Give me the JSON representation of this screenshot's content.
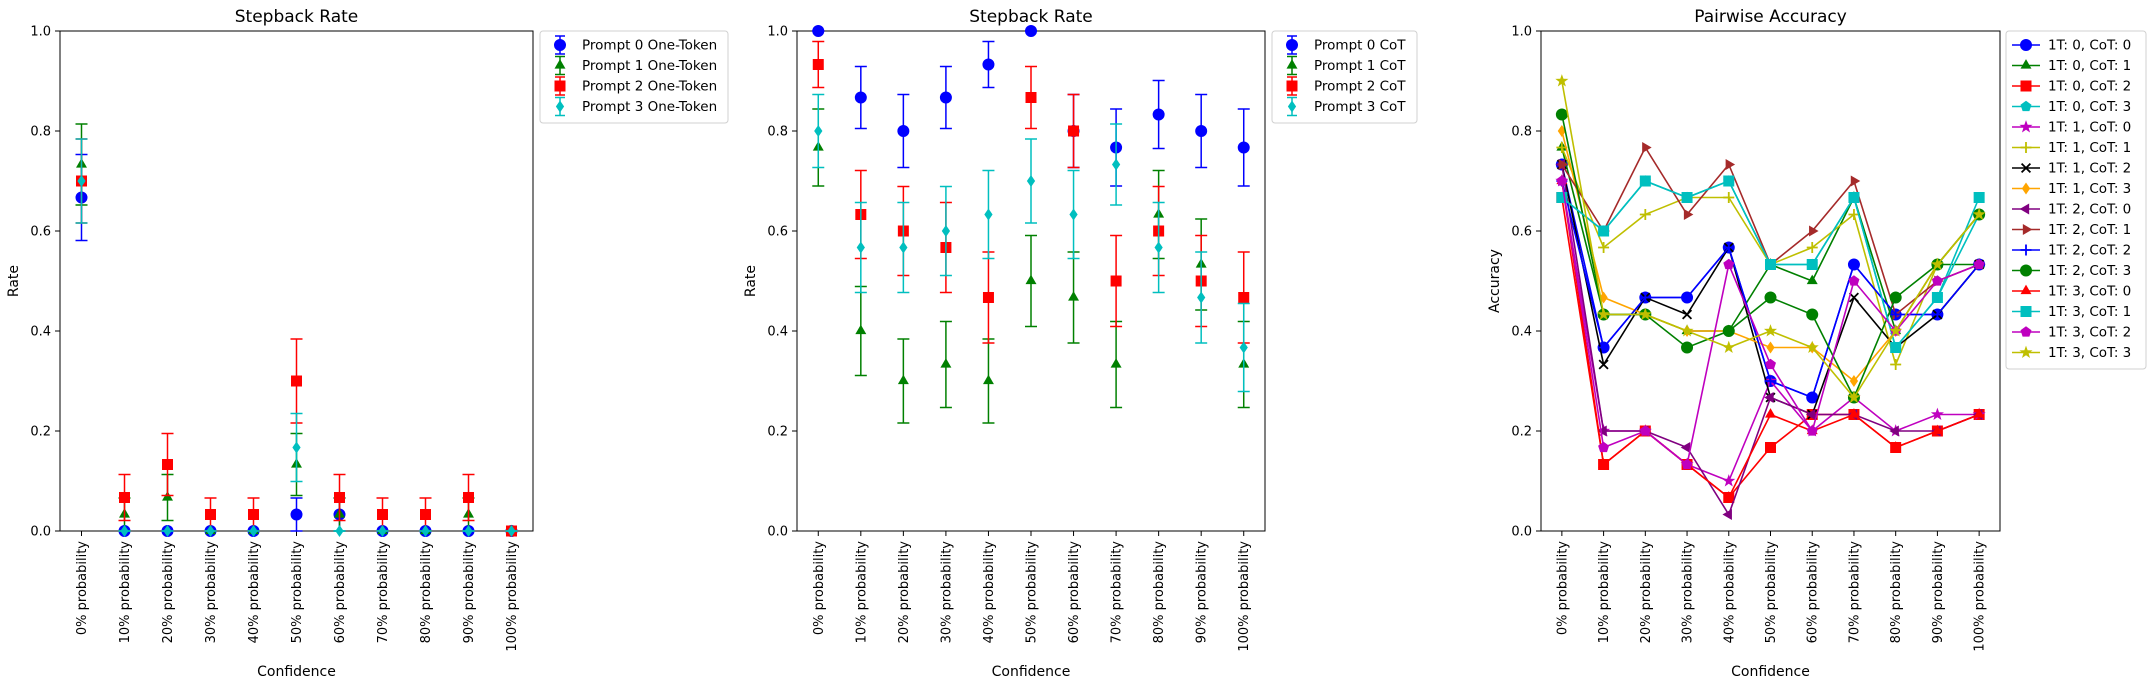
{
  "chart_data": [
    {
      "type": "scatter",
      "title": "Stepback Rate",
      "xlabel": "Confidence",
      "ylabel": "Rate",
      "ylim": [
        0,
        1
      ],
      "yticks": [
        "0.0",
        "0.2",
        "0.4",
        "0.6",
        "0.8",
        "1.0"
      ],
      "categories": [
        "0% probability",
        "10% probability",
        "20% probability",
        "30% probability",
        "40% probability",
        "50% probability",
        "60% probability",
        "70% probability",
        "80% probability",
        "90% probability",
        "100% probability"
      ],
      "legend_position": "outside-right-top",
      "grid": false,
      "error_bars": true,
      "series": [
        {
          "name": "Prompt 0 One-Token",
          "color": "#0000ff",
          "marker": "circle",
          "values": [
            0.667,
            0,
            0,
            0,
            0,
            0.033,
            0.033,
            0,
            0,
            0,
            0
          ],
          "errors": [
            0.086,
            0,
            0,
            0,
            0,
            0.033,
            0.033,
            0,
            0,
            0,
            0
          ]
        },
        {
          "name": "Prompt 1 One-Token",
          "color": "#008000",
          "marker": "triangle",
          "values": [
            0.733,
            0.033,
            0.067,
            0,
            0,
            0.133,
            0.033,
            0,
            0,
            0.033,
            0
          ],
          "errors": [
            0.081,
            0.033,
            0.046,
            0,
            0,
            0.062,
            0.033,
            0,
            0,
            0.033,
            0
          ]
        },
        {
          "name": "Prompt 2 One-Token",
          "color": "#ff0000",
          "marker": "square",
          "values": [
            0.7,
            0.067,
            0.133,
            0.033,
            0.033,
            0.3,
            0.067,
            0.033,
            0.033,
            0.067,
            0
          ],
          "errors": [
            0.084,
            0.046,
            0.062,
            0.033,
            0.033,
            0.084,
            0.046,
            0.033,
            0.033,
            0.046,
            0
          ]
        },
        {
          "name": "Prompt 3 One-Token",
          "color": "#00bfbf",
          "marker": "diamond",
          "values": [
            0.7,
            0,
            0,
            0,
            0,
            0.167,
            0,
            0,
            0,
            0,
            0
          ],
          "errors": [
            0.084,
            0,
            0,
            0,
            0,
            0.068,
            0,
            0,
            0,
            0,
            0
          ]
        }
      ]
    },
    {
      "type": "scatter",
      "title": "Stepback Rate",
      "xlabel": "Confidence",
      "ylabel": "Rate",
      "ylim": [
        0,
        1
      ],
      "yticks": [
        "0.0",
        "0.2",
        "0.4",
        "0.6",
        "0.8",
        "1.0"
      ],
      "categories": [
        "0% probability",
        "10% probability",
        "20% probability",
        "30% probability",
        "40% probability",
        "50% probability",
        "60% probability",
        "70% probability",
        "80% probability",
        "90% probability",
        "100% probability"
      ],
      "legend_position": "outside-right-top",
      "grid": false,
      "error_bars": true,
      "series": [
        {
          "name": "Prompt 0 CoT",
          "color": "#0000ff",
          "marker": "circle",
          "values": [
            1.0,
            0.867,
            0.8,
            0.867,
            0.933,
            1.0,
            0.8,
            0.767,
            0.833,
            0.8,
            0.767
          ],
          "errors": [
            0,
            0.062,
            0.073,
            0.062,
            0.046,
            0,
            0.073,
            0.077,
            0.068,
            0.073,
            0.077
          ]
        },
        {
          "name": "Prompt 1 CoT",
          "color": "#008000",
          "marker": "triangle",
          "values": [
            0.767,
            0.4,
            0.3,
            0.333,
            0.3,
            0.5,
            0.467,
            0.333,
            0.633,
            0.533,
            0.333
          ],
          "errors": [
            0.077,
            0.089,
            0.084,
            0.086,
            0.084,
            0.091,
            0.091,
            0.086,
            0.088,
            0.091,
            0.086
          ]
        },
        {
          "name": "Prompt 2 CoT",
          "color": "#ff0000",
          "marker": "square",
          "values": [
            0.933,
            0.633,
            0.6,
            0.567,
            0.467,
            0.867,
            0.8,
            0.5,
            0.6,
            0.5,
            0.467
          ],
          "errors": [
            0.046,
            0.088,
            0.089,
            0.09,
            0.091,
            0.062,
            0.073,
            0.091,
            0.089,
            0.091,
            0.091
          ]
        },
        {
          "name": "Prompt 3 CoT",
          "color": "#00bfbf",
          "marker": "diamond",
          "values": [
            0.8,
            0.567,
            0.567,
            0.6,
            0.633,
            0.7,
            0.633,
            0.733,
            0.567,
            0.467,
            0.367
          ],
          "errors": [
            0.073,
            0.09,
            0.09,
            0.089,
            0.088,
            0.084,
            0.088,
            0.081,
            0.09,
            0.091,
            0.088
          ]
        }
      ]
    },
    {
      "type": "line",
      "title": "Pairwise Accuracy",
      "xlabel": "Confidence",
      "ylabel": "Accuracy",
      "ylim": [
        0,
        1
      ],
      "yticks": [
        "0.0",
        "0.2",
        "0.4",
        "0.6",
        "0.8",
        "1.0"
      ],
      "categories": [
        "0% probability",
        "10% probability",
        "20% probability",
        "30% probability",
        "40% probability",
        "50% probability",
        "60% probability",
        "70% probability",
        "80% probability",
        "90% probability",
        "100% probability"
      ],
      "legend_position": "outside-right-top",
      "grid": false,
      "series": [
        {
          "name": "1T: 0, CoT: 0",
          "color": "#0000ff",
          "marker": "circle",
          "values": [
            0.733,
            0.367,
            0.467,
            0.467,
            0.567,
            0.3,
            0.267,
            0.533,
            0.433,
            0.433,
            0.533
          ]
        },
        {
          "name": "1T: 0, CoT: 1",
          "color": "#008000",
          "marker": "triangle",
          "values": [
            0.767,
            0.433,
            0.433,
            0.4,
            0.4,
            0.533,
            0.5,
            0.667,
            0.4,
            0.533,
            0.533
          ]
        },
        {
          "name": "1T: 0, CoT: 2",
          "color": "#ff0000",
          "marker": "square",
          "values": [
            0.667,
            0.133,
            0.2,
            0.133,
            0.067,
            0.167,
            0.233,
            0.233,
            0.167,
            0.2,
            0.233
          ]
        },
        {
          "name": "1T: 0, CoT: 3",
          "color": "#00bfbf",
          "marker": "pentagon",
          "values": [
            0.667,
            0.6,
            0.7,
            0.667,
            0.7,
            0.533,
            0.533,
            0.667,
            0.367,
            0.467,
            0.633
          ]
        },
        {
          "name": "1T: 1, CoT: 0",
          "color": "#bf00bf",
          "marker": "star",
          "values": [
            0.7,
            0.2,
            0.2,
            0.133,
            0.1,
            0.3,
            0.2,
            0.267,
            0.2,
            0.233,
            0.233
          ]
        },
        {
          "name": "1T: 1, CoT: 1",
          "color": "#bfbf00",
          "marker": "plus",
          "values": [
            0.767,
            0.567,
            0.633,
            0.667,
            0.667,
            0.533,
            0.567,
            0.633,
            0.333,
            0.533,
            0.633
          ]
        },
        {
          "name": "1T: 1, CoT: 2",
          "color": "#000000",
          "marker": "x",
          "values": [
            0.733,
            0.333,
            0.467,
            0.433,
            0.567,
            0.267,
            0.233,
            0.467,
            0.367,
            0.433,
            0.533
          ]
        },
        {
          "name": "1T: 1, CoT: 3",
          "color": "#ffa500",
          "marker": "diamond",
          "values": [
            0.8,
            0.467,
            0.433,
            0.4,
            0.4,
            0.367,
            0.367,
            0.3,
            0.4,
            0.533,
            0.633
          ]
        },
        {
          "name": "1T: 2, CoT: 0",
          "color": "#800080",
          "marker": "triangle-left",
          "values": [
            0.733,
            0.2,
            0.2,
            0.167,
            0.033,
            0.267,
            0.233,
            0.233,
            0.2,
            0.2,
            0.233
          ]
        },
        {
          "name": "1T: 2, CoT: 1",
          "color": "#a52a2a",
          "marker": "triangle-right",
          "values": [
            0.733,
            0.6,
            0.767,
            0.633,
            0.733,
            0.533,
            0.6,
            0.7,
            0.433,
            0.5,
            0.533
          ]
        },
        {
          "name": "1T: 2, CoT: 2",
          "color": "#0000ff",
          "marker": "plus",
          "values": [
            0.7,
            0.367,
            0.467,
            0.467,
            0.567,
            0.3,
            0.267,
            0.533,
            0.433,
            0.433,
            0.533
          ]
        },
        {
          "name": "1T: 2, CoT: 3",
          "color": "#008000",
          "marker": "circle",
          "values": [
            0.833,
            0.433,
            0.433,
            0.367,
            0.4,
            0.467,
            0.433,
            0.267,
            0.467,
            0.533,
            0.633
          ]
        },
        {
          "name": "1T: 3, CoT: 0",
          "color": "#ff0000",
          "marker": "triangle",
          "values": [
            0.7,
            0.133,
            0.2,
            0.133,
            0.067,
            0.233,
            0.2,
            0.233,
            0.167,
            0.2,
            0.233
          ]
        },
        {
          "name": "1T: 3, CoT: 1",
          "color": "#00bfbf",
          "marker": "square",
          "values": [
            0.667,
            0.6,
            0.7,
            0.667,
            0.7,
            0.533,
            0.533,
            0.667,
            0.367,
            0.467,
            0.667
          ]
        },
        {
          "name": "1T: 3, CoT: 2",
          "color": "#bf00bf",
          "marker": "pentagon",
          "values": [
            0.7,
            0.167,
            0.2,
            0.133,
            0.533,
            0.333,
            0.2,
            0.5,
            0.4,
            0.5,
            0.533
          ]
        },
        {
          "name": "1T: 3, CoT: 3",
          "color": "#bfbf00",
          "marker": "star",
          "values": [
            0.9,
            0.433,
            0.433,
            0.4,
            0.367,
            0.4,
            0.367,
            0.267,
            0.4,
            0.533,
            0.633
          ]
        }
      ]
    }
  ]
}
